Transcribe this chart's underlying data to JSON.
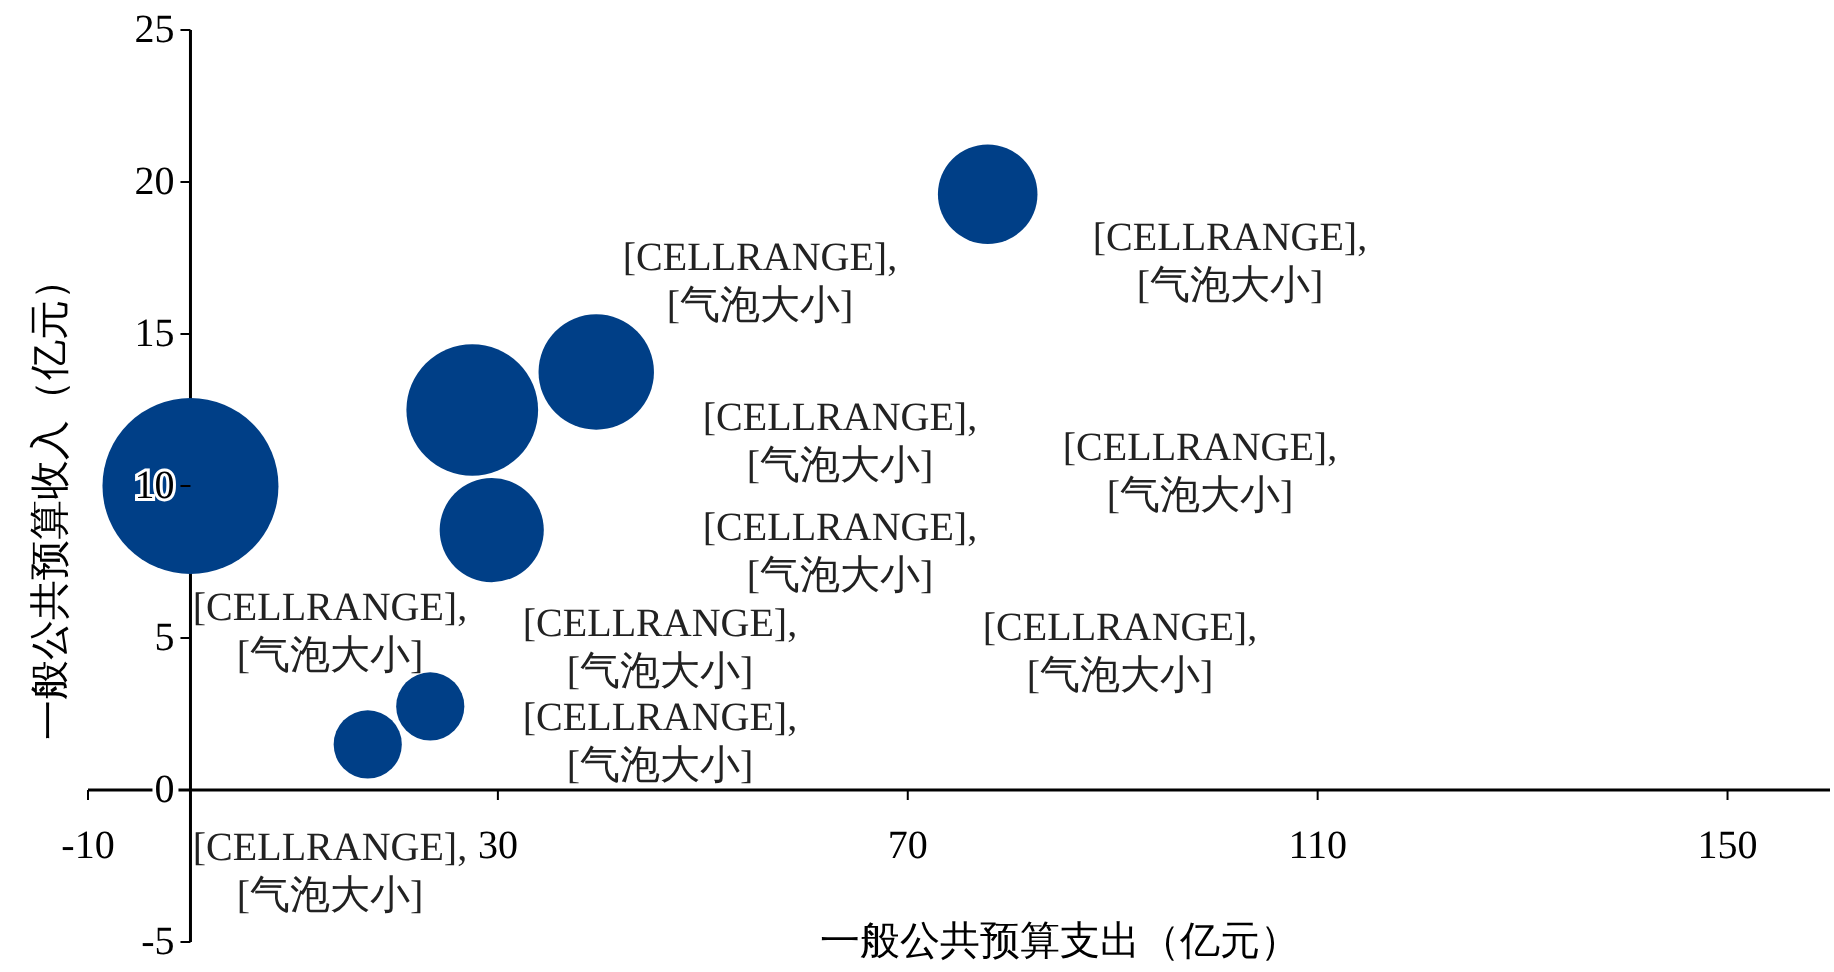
{
  "chart_data": {
    "type": "bubble",
    "xlabel": "一般公共预算支出（亿元）",
    "ylabel": "一般公共预算收入（亿元）",
    "x": [
      0,
      27.5,
      39.6,
      29.4,
      77.8,
      23.4,
      17.3
    ],
    "series": [
      {
        "color": "#003f87",
        "values": [
          10,
          12.5,
          13.75,
          8.55,
          19.6,
          2.75,
          1.5
        ],
        "sizes": [
          1,
          0.56,
          0.43,
          0.35,
          0.32,
          0.15,
          0.15
        ]
      }
    ],
    "xlim": [
      -10,
      160
    ],
    "xticks": [
      -10,
      30,
      70,
      110,
      150
    ],
    "ylim": [
      -5,
      25
    ],
    "yticks": [
      -5,
      0,
      5,
      10,
      15,
      20,
      25
    ],
    "grid": false,
    "legend": false,
    "annotations": [
      "[CELLRANGE],\n[气泡大小]",
      "[CELLRANGE],\n[气泡大小]",
      "[CELLRANGE],\n[气泡大小]",
      "[CELLRANGE],\n[气泡大小]",
      "[CELLRANGE],\n[气泡大小]",
      "[CELLRANGE],\n[气泡大小]",
      "[CELLRANGE],\n[气泡大小]",
      "[CELLRANGE],\n[气泡大小]",
      "[CELLRANGE],\n[气泡大小]",
      "[CELLRANGE],\n[气泡大小]"
    ]
  }
}
